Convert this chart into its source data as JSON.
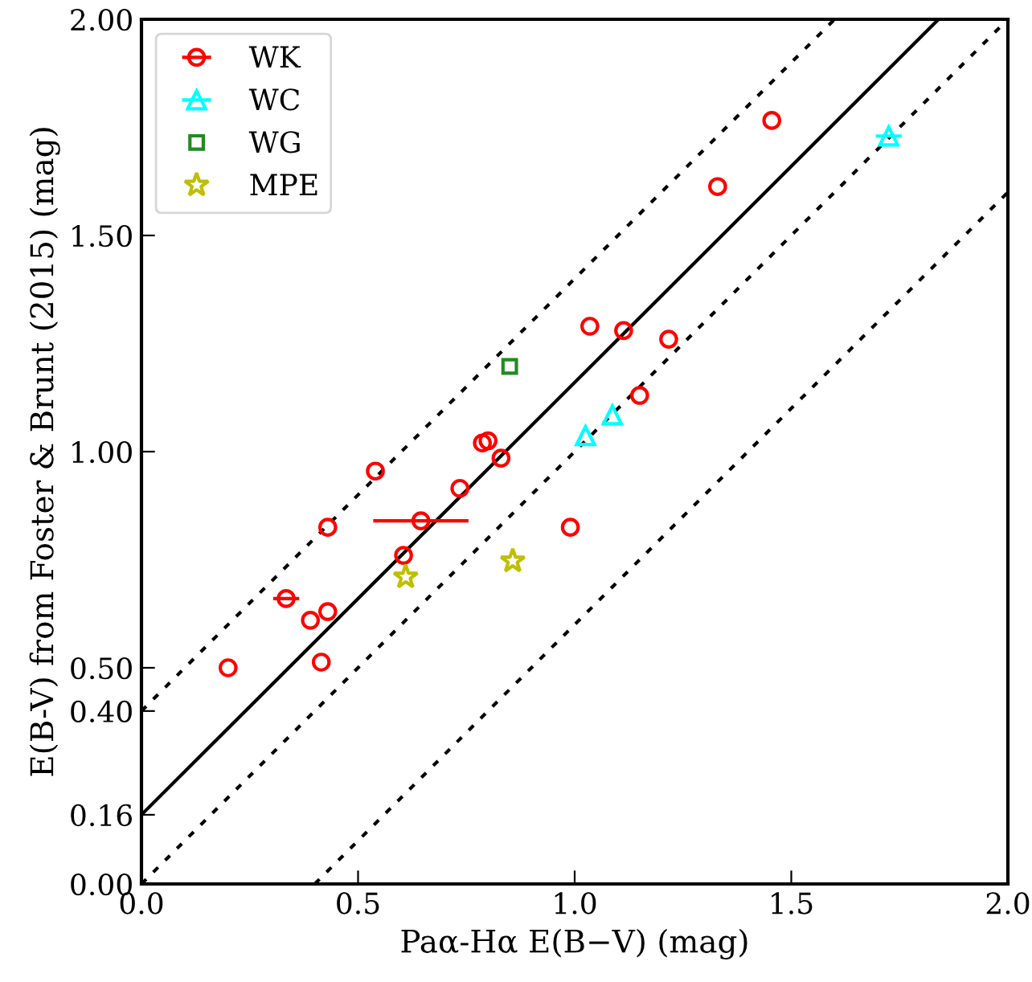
{
  "chart_data": {
    "type": "scatter",
    "xlabel": "Paα-Hα E(B−V) (mag)",
    "ylabel": "E(B-V) from Foster & Brunt (2015) (mag)",
    "xlim": [
      0.0,
      2.0
    ],
    "ylim": [
      0.0,
      2.0
    ],
    "xticks": [
      {
        "value": 0,
        "label": "0.0"
      },
      {
        "value": 0.5,
        "label": "0.5"
      },
      {
        "value": 1,
        "label": "1.0"
      },
      {
        "value": 1.5,
        "label": "1.5"
      },
      {
        "value": 2,
        "label": "2.0"
      }
    ],
    "yticks": [
      {
        "value": 0,
        "label": "0.00"
      },
      0.16,
      {
        "value": 0.4,
        "label": "0.40"
      },
      {
        "value": 0.5,
        "label": "0.50"
      },
      {
        "value": 1,
        "label": "1.00"
      },
      {
        "value": 1.5,
        "label": "1.50"
      },
      {
        "value": 2,
        "label": "2.00"
      }
    ],
    "grid": false,
    "legend": "top left",
    "series": [
      {
        "name": "WK",
        "color": "#ff0000",
        "marker": "circle",
        "x": [
          0.2,
          0.334,
          0.39,
          0.43,
          0.415,
          0.43,
          0.54,
          0.605,
          0.645,
          0.735,
          0.787,
          0.8,
          0.83,
          0.99,
          1.035,
          1.113,
          1.15,
          1.217,
          1.33,
          1.455
        ],
        "values": [
          0.5,
          0.66,
          0.61,
          0.63,
          0.513,
          0.825,
          0.955,
          0.76,
          0.84,
          0.915,
          1.02,
          1.025,
          0.985,
          0.825,
          1.29,
          1.28,
          1.13,
          1.26,
          1.613,
          1.766
        ],
        "xerrors": [
          null,
          0.03,
          null,
          null,
          null,
          null,
          null,
          null,
          0.11,
          null,
          null,
          null,
          null,
          null,
          null,
          null,
          null,
          null,
          null,
          null
        ]
      },
      {
        "name": "WC",
        "color": "#00ffff",
        "marker": "triangle",
        "x": [
          1.025,
          1.087,
          1.725
        ],
        "values": [
          1.037,
          1.085,
          1.73
        ],
        "xerrors": [
          null,
          null,
          0.03
        ]
      },
      {
        "name": "WG",
        "color": "#228b22",
        "marker": "square",
        "x": [
          0.85
        ],
        "values": [
          1.197
        ]
      },
      {
        "name": "MPE",
        "color": "#bfbf00",
        "marker": "star",
        "x": [
          0.61,
          0.857
        ],
        "values": [
          0.71,
          0.747
        ]
      },
      {
        "type": "line",
        "color": "#000000",
        "line_style": "solid",
        "x": [
          0,
          1.84
        ],
        "values": [
          0.16,
          2.0
        ]
      },
      {
        "type": "line",
        "color": "#000000",
        "line_style": "dotted",
        "x": [
          0,
          1.6
        ],
        "values": [
          0.4,
          2.0
        ]
      },
      {
        "type": "line",
        "color": "#000000",
        "line_style": "dotted",
        "x": [
          0,
          2.0
        ],
        "values": [
          0.0,
          2.0
        ]
      },
      {
        "type": "line",
        "color": "#000000",
        "line_style": "dotted",
        "x": [
          0.4,
          2.0
        ],
        "values": [
          0.0,
          1.6
        ]
      }
    ]
  }
}
